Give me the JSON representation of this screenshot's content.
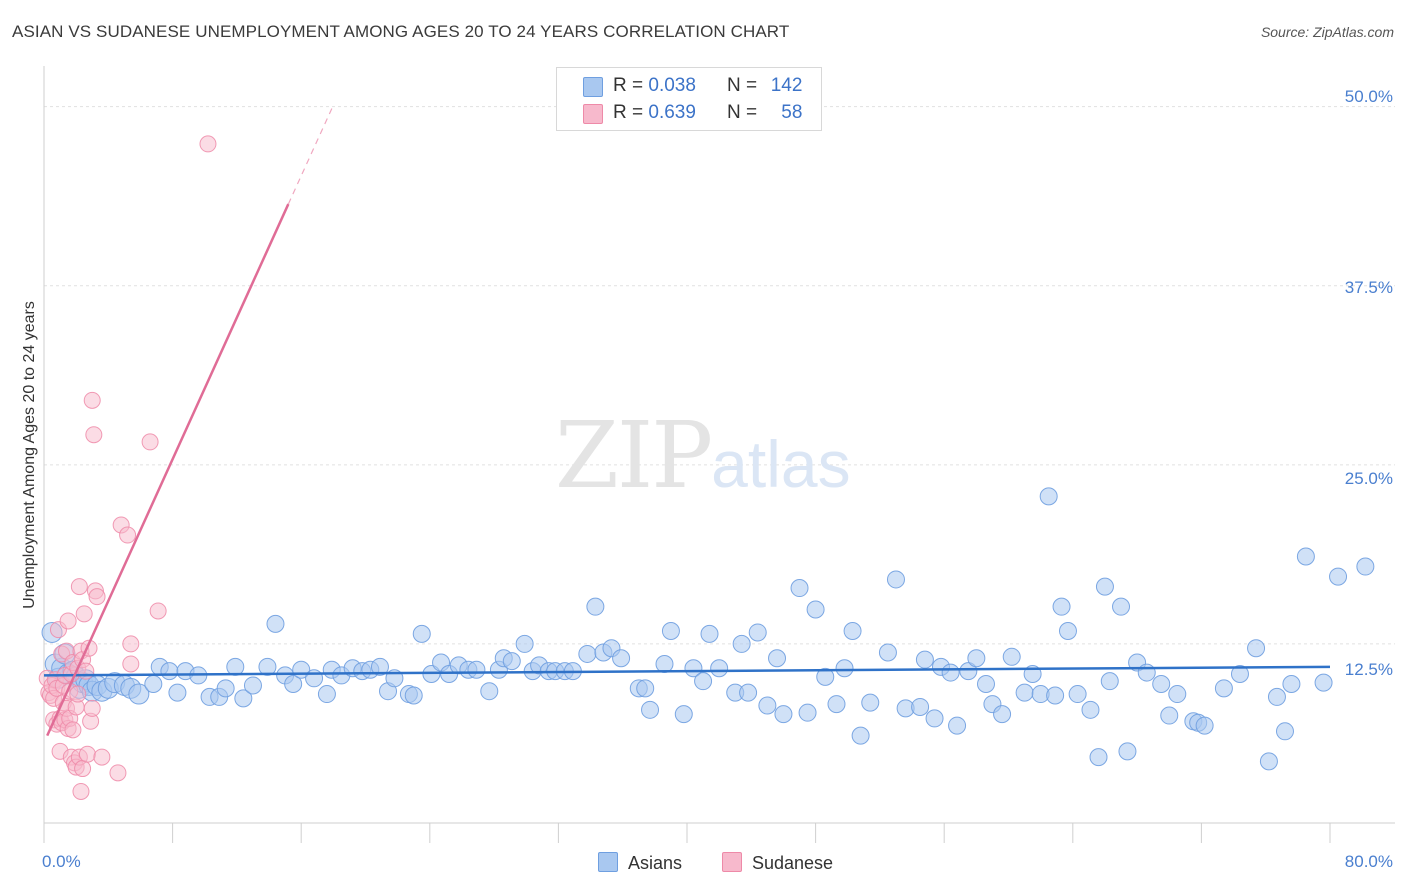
{
  "header": {
    "title": "ASIAN VS SUDANESE UNEMPLOYMENT AMONG AGES 20 TO 24 YEARS CORRELATION CHART",
    "source": "Source: ZipAtlas.com"
  },
  "watermark": {
    "zip": "ZIP",
    "atlas": "atlas"
  },
  "legend": {
    "asians": {
      "r_label": "R =",
      "r_value": "0.038",
      "n_label": "N =",
      "n_value": "142"
    },
    "sudanese": {
      "r_label": "R =",
      "r_value": "0.639",
      "n_label": "N =",
      "n_value": "58"
    }
  },
  "bottom_legend": {
    "asians": "Asians",
    "sudanese": "Sudanese"
  },
  "colors": {
    "asians_fill": "#a9c8f0",
    "asians_stroke": "#6f9fe0",
    "asians_line": "#2f72c8",
    "sudanese_fill": "#f7b9cc",
    "sudanese_stroke": "#ee8aa8",
    "sudanese_line": "#e06c96",
    "tick_text": "#4a7fcf",
    "grid": "#e1e1e1"
  },
  "chart_data": {
    "type": "scatter",
    "title": "ASIAN VS SUDANESE UNEMPLOYMENT AMONG AGES 20 TO 24 YEARS CORRELATION CHART",
    "xlabel": "",
    "ylabel": "Unemployment Among Ages 20 to 24 years",
    "xlim": [
      0,
      80
    ],
    "ylim": [
      0,
      52
    ],
    "x_tick_labels": [
      "0.0%",
      "80.0%"
    ],
    "y_ticks": [
      12.5,
      25.0,
      37.5,
      50.0
    ],
    "y_tick_labels": [
      "12.5%",
      "25.0%",
      "37.5%",
      "50.0%"
    ],
    "grid": true,
    "legend_position": "top-center",
    "series": [
      {
        "name": "Asians",
        "R": 0.038,
        "N": 142,
        "trendline": {
          "x": [
            0,
            80
          ],
          "y": [
            10.3,
            10.9
          ]
        },
        "points": [
          [
            0.5,
            13.3
          ],
          [
            0.7,
            11.1
          ],
          [
            0.9,
            10.1
          ],
          [
            1.1,
            10.8
          ],
          [
            1.3,
            11.8
          ],
          [
            1.5,
            10.4
          ],
          [
            1.8,
            10.6
          ],
          [
            2.0,
            10.2
          ],
          [
            2.2,
            9.4
          ],
          [
            2.4,
            9.8
          ],
          [
            2.6,
            10.0
          ],
          [
            2.8,
            9.6
          ],
          [
            3.0,
            9.2
          ],
          [
            3.3,
            9.6
          ],
          [
            3.6,
            9.2
          ],
          [
            4.0,
            9.4
          ],
          [
            4.4,
            9.8
          ],
          [
            5.0,
            9.6
          ],
          [
            5.4,
            9.4
          ],
          [
            5.9,
            9.0
          ],
          [
            6.8,
            9.7
          ],
          [
            7.2,
            10.9
          ],
          [
            7.8,
            10.6
          ],
          [
            8.3,
            9.1
          ],
          [
            8.8,
            10.6
          ],
          [
            9.6,
            10.3
          ],
          [
            10.3,
            8.8
          ],
          [
            10.9,
            8.8
          ],
          [
            11.3,
            9.4
          ],
          [
            11.9,
            10.9
          ],
          [
            12.4,
            8.7
          ],
          [
            13.0,
            9.6
          ],
          [
            13.9,
            10.9
          ],
          [
            14.4,
            13.9
          ],
          [
            15.0,
            10.3
          ],
          [
            15.5,
            9.7
          ],
          [
            16.0,
            10.7
          ],
          [
            16.8,
            10.1
          ],
          [
            17.6,
            9.0
          ],
          [
            17.9,
            10.7
          ],
          [
            18.5,
            10.3
          ],
          [
            19.2,
            10.8
          ],
          [
            19.8,
            10.6
          ],
          [
            20.3,
            10.7
          ],
          [
            20.9,
            10.9
          ],
          [
            21.4,
            9.2
          ],
          [
            21.8,
            10.1
          ],
          [
            22.7,
            9.0
          ],
          [
            23.0,
            8.9
          ],
          [
            23.5,
            13.2
          ],
          [
            24.1,
            10.4
          ],
          [
            24.7,
            11.2
          ],
          [
            25.2,
            10.4
          ],
          [
            25.8,
            11.0
          ],
          [
            26.4,
            10.7
          ],
          [
            26.9,
            10.7
          ],
          [
            27.7,
            9.2
          ],
          [
            28.3,
            10.7
          ],
          [
            28.6,
            11.5
          ],
          [
            29.1,
            11.3
          ],
          [
            29.9,
            12.5
          ],
          [
            30.4,
            10.6
          ],
          [
            30.8,
            11.0
          ],
          [
            31.4,
            10.6
          ],
          [
            31.8,
            10.6
          ],
          [
            32.4,
            10.6
          ],
          [
            32.9,
            10.6
          ],
          [
            33.8,
            11.8
          ],
          [
            34.3,
            15.1
          ],
          [
            34.8,
            11.9
          ],
          [
            35.3,
            12.2
          ],
          [
            35.9,
            11.5
          ],
          [
            37.0,
            9.4
          ],
          [
            37.4,
            9.4
          ],
          [
            37.7,
            7.9
          ],
          [
            38.6,
            11.1
          ],
          [
            39.0,
            13.4
          ],
          [
            39.8,
            7.6
          ],
          [
            40.4,
            10.8
          ],
          [
            41.0,
            9.9
          ],
          [
            41.4,
            13.2
          ],
          [
            42.0,
            10.8
          ],
          [
            43.0,
            9.1
          ],
          [
            43.4,
            12.5
          ],
          [
            43.8,
            9.1
          ],
          [
            44.4,
            13.3
          ],
          [
            45.0,
            8.2
          ],
          [
            45.6,
            11.5
          ],
          [
            46.0,
            7.6
          ],
          [
            47.0,
            16.4
          ],
          [
            47.5,
            7.7
          ],
          [
            48.0,
            14.9
          ],
          [
            48.6,
            10.2
          ],
          [
            49.3,
            8.3
          ],
          [
            49.8,
            10.8
          ],
          [
            50.3,
            13.4
          ],
          [
            50.8,
            6.1
          ],
          [
            51.4,
            8.4
          ],
          [
            52.5,
            11.9
          ],
          [
            53.0,
            17.0
          ],
          [
            53.6,
            8.0
          ],
          [
            54.5,
            8.1
          ],
          [
            54.8,
            11.4
          ],
          [
            55.4,
            7.3
          ],
          [
            55.8,
            10.9
          ],
          [
            56.4,
            10.5
          ],
          [
            56.8,
            6.8
          ],
          [
            57.5,
            10.6
          ],
          [
            58.0,
            11.5
          ],
          [
            58.6,
            9.7
          ],
          [
            59.0,
            8.3
          ],
          [
            59.6,
            7.6
          ],
          [
            60.2,
            11.6
          ],
          [
            61.0,
            9.1
          ],
          [
            61.5,
            10.4
          ],
          [
            62.0,
            9.0
          ],
          [
            62.5,
            22.8
          ],
          [
            62.9,
            8.9
          ],
          [
            63.3,
            15.1
          ],
          [
            63.7,
            13.4
          ],
          [
            64.3,
            9.0
          ],
          [
            65.1,
            7.9
          ],
          [
            65.6,
            4.6
          ],
          [
            66.0,
            16.5
          ],
          [
            66.3,
            9.9
          ],
          [
            67.0,
            15.1
          ],
          [
            67.4,
            5.0
          ],
          [
            68.0,
            11.2
          ],
          [
            68.6,
            10.5
          ],
          [
            69.5,
            9.7
          ],
          [
            70.0,
            7.5
          ],
          [
            70.5,
            9.0
          ],
          [
            71.5,
            7.1
          ],
          [
            71.8,
            7.0
          ],
          [
            72.2,
            6.8
          ],
          [
            73.4,
            9.4
          ],
          [
            74.4,
            10.4
          ],
          [
            75.4,
            12.2
          ],
          [
            76.2,
            4.3
          ],
          [
            76.7,
            8.8
          ],
          [
            77.2,
            6.4
          ],
          [
            77.6,
            9.7
          ],
          [
            78.5,
            18.6
          ],
          [
            79.6,
            9.8
          ],
          [
            80.5,
            17.2
          ],
          [
            82.2,
            17.9
          ]
        ]
      },
      {
        "name": "Sudanese",
        "R": 0.639,
        "N": 58,
        "trendline": {
          "x": [
            0.2,
            15.2
          ],
          "y": [
            6.1,
            43.2
          ]
        },
        "trendline_dashed": {
          "x": [
            15.2,
            18.0
          ],
          "y": [
            43.2,
            50.1
          ]
        },
        "points": [
          [
            0.2,
            10.1
          ],
          [
            0.3,
            9.1
          ],
          [
            0.4,
            8.9
          ],
          [
            0.5,
            9.6
          ],
          [
            0.6,
            8.7
          ],
          [
            0.6,
            7.2
          ],
          [
            0.7,
            10.0
          ],
          [
            0.8,
            6.9
          ],
          [
            0.8,
            9.4
          ],
          [
            0.9,
            13.5
          ],
          [
            1.0,
            7.3
          ],
          [
            1.0,
            5.0
          ],
          [
            1.1,
            11.8
          ],
          [
            1.1,
            7.0
          ],
          [
            1.2,
            9.6
          ],
          [
            1.2,
            8.4
          ],
          [
            1.3,
            10.3
          ],
          [
            1.3,
            7.2
          ],
          [
            1.4,
            8.0
          ],
          [
            1.4,
            12.0
          ],
          [
            1.5,
            14.1
          ],
          [
            1.5,
            6.6
          ],
          [
            1.6,
            7.3
          ],
          [
            1.6,
            9.2
          ],
          [
            1.7,
            10.4
          ],
          [
            1.7,
            4.6
          ],
          [
            1.8,
            6.5
          ],
          [
            1.8,
            11.2
          ],
          [
            1.9,
            4.2
          ],
          [
            2.0,
            3.9
          ],
          [
            2.0,
            8.1
          ],
          [
            2.1,
            9.0
          ],
          [
            2.1,
            10.8
          ],
          [
            2.2,
            4.6
          ],
          [
            2.2,
            16.5
          ],
          [
            2.3,
            12.0
          ],
          [
            2.3,
            2.2
          ],
          [
            2.4,
            11.4
          ],
          [
            2.4,
            3.8
          ],
          [
            2.5,
            14.6
          ],
          [
            2.6,
            10.6
          ],
          [
            2.7,
            4.8
          ],
          [
            2.8,
            12.2
          ],
          [
            2.9,
            7.1
          ],
          [
            3.0,
            8.0
          ],
          [
            3.0,
            29.5
          ],
          [
            3.1,
            27.1
          ],
          [
            3.2,
            16.2
          ],
          [
            3.3,
            15.8
          ],
          [
            3.6,
            4.6
          ],
          [
            4.6,
            3.5
          ],
          [
            4.8,
            20.8
          ],
          [
            5.2,
            20.1
          ],
          [
            5.4,
            12.5
          ],
          [
            5.4,
            11.1
          ],
          [
            6.6,
            26.6
          ],
          [
            7.1,
            14.8
          ],
          [
            10.2,
            47.4
          ]
        ]
      }
    ]
  }
}
